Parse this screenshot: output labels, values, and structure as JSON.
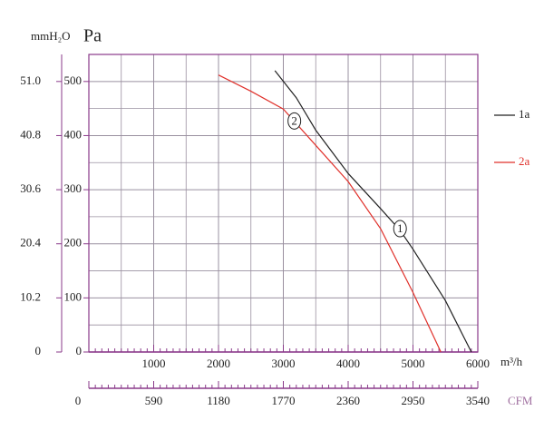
{
  "chart_data": {
    "type": "line",
    "y_label": "Pa",
    "y2_label": "mmH₂O",
    "x_label": "m³/h",
    "x2_label": "CFM",
    "xlim": [
      0,
      6000
    ],
    "xticks": [
      1000,
      2000,
      3000,
      4000,
      5000,
      6000
    ],
    "x2lim": [
      0,
      3540
    ],
    "x2ticks": [
      0,
      590,
      1180,
      1770,
      2360,
      2950,
      3540
    ],
    "ylim": [
      0,
      550
    ],
    "yticks": [
      0,
      100,
      200,
      300,
      400,
      500
    ],
    "y2lim": [
      0,
      56.1
    ],
    "y2ticks": [
      0,
      10.2,
      20.4,
      30.6,
      40.8,
      {
        "value": 51,
        "label": "51.0"
      }
    ],
    "grid": true,
    "legend": "right",
    "series": [
      {
        "name": "1a",
        "color": "#222222",
        "x": [
          2870,
          3200,
          3500,
          4000,
          4500,
          4800,
          5000,
          5500,
          5900
        ],
        "values": [
          520,
          470,
          410,
          330,
          265,
          225,
          190,
          95,
          0
        ]
      },
      {
        "name": "2a",
        "color": "#e0302a",
        "x": [
          2000,
          2500,
          3000,
          3500,
          4000,
          4500,
          5000,
          5430
        ],
        "values": [
          512,
          482,
          449,
          382,
          315,
          228,
          110,
          0
        ]
      }
    ],
    "annotations": [
      {
        "text": "1",
        "x": 4800,
        "y": 228
      },
      {
        "text": "2",
        "x": 3170,
        "y": 427
      }
    ]
  }
}
